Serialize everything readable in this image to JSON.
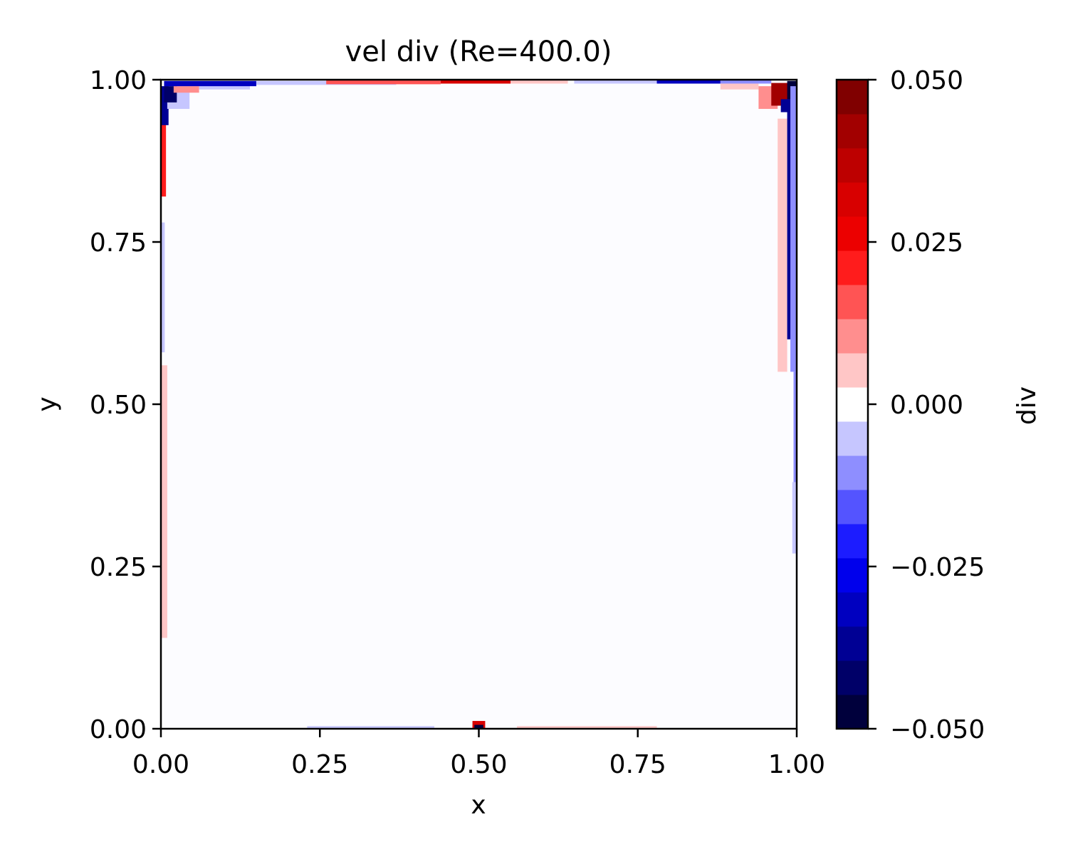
{
  "chart_data": {
    "type": "heatmap",
    "title": "vel div (Re=400.0)",
    "xlabel": "x",
    "ylabel": "y",
    "xlim": [
      0.0,
      1.0
    ],
    "ylim": [
      0.0,
      1.0
    ],
    "x_ticks": [
      "0.00",
      "0.25",
      "0.50",
      "0.75",
      "1.00"
    ],
    "y_ticks": [
      "0.00",
      "0.25",
      "0.50",
      "0.75",
      "1.00"
    ],
    "background_value": 0.0,
    "grid": false,
    "colorbar": {
      "label": "div",
      "vmin": -0.05,
      "vmax": 0.05,
      "ticks": [
        "−0.050",
        "−0.025",
        "0.000",
        "0.025",
        "0.050"
      ],
      "levels": 19,
      "colors_bottom_to_top": [
        "#00003c",
        "#000068",
        "#000094",
        "#0000c0",
        "#0000ec",
        "#1c1cff",
        "#5454ff",
        "#8e8eff",
        "#c6c6ff",
        "#ffffff",
        "#ffc6c6",
        "#ff8e8e",
        "#ff5454",
        "#ff1c1c",
        "#ec0000",
        "#d80000",
        "#bd0000",
        "#a20000",
        "#800000"
      ]
    },
    "features": [
      {
        "x0": 0.0,
        "x1": 0.01,
        "y0": 0.14,
        "y1": 0.56,
        "value": 0.004
      },
      {
        "x0": 0.0,
        "x1": 0.006,
        "y0": 0.58,
        "y1": 0.78,
        "value": -0.004
      },
      {
        "x0": 0.0,
        "x1": 0.008,
        "y0": 0.82,
        "y1": 0.96,
        "value": 0.022
      },
      {
        "x0": 0.0,
        "x1": 0.012,
        "y0": 0.93,
        "y1": 0.99,
        "value": -0.035
      },
      {
        "x0": 0.01,
        "x1": 0.045,
        "y0": 0.955,
        "y1": 0.985,
        "value": -0.007
      },
      {
        "x0": 0.005,
        "x1": 0.025,
        "y0": 0.965,
        "y1": 0.99,
        "value": -0.04
      },
      {
        "x0": 0.02,
        "x1": 0.06,
        "y0": 0.98,
        "y1": 0.99,
        "value": 0.012
      },
      {
        "x0": 0.06,
        "x1": 0.14,
        "y0": 0.985,
        "y1": 0.995,
        "value": -0.006
      },
      {
        "x0": 0.005,
        "x1": 0.15,
        "y0": 0.99,
        "y1": 0.998,
        "value": -0.03
      },
      {
        "x0": 0.15,
        "x1": 0.37,
        "y0": 0.992,
        "y1": 0.998,
        "value": -0.004
      },
      {
        "x0": 0.26,
        "x1": 0.44,
        "y0": 0.993,
        "y1": 1.0,
        "value": 0.018
      },
      {
        "x0": 0.44,
        "x1": 0.55,
        "y0": 0.994,
        "y1": 1.0,
        "value": 0.03
      },
      {
        "x0": 0.55,
        "x1": 0.64,
        "y0": 0.994,
        "y1": 1.0,
        "value": 0.006
      },
      {
        "x0": 0.65,
        "x1": 0.78,
        "y0": 0.994,
        "y1": 1.0,
        "value": -0.005
      },
      {
        "x0": 0.78,
        "x1": 0.88,
        "y0": 0.994,
        "y1": 1.0,
        "value": -0.03
      },
      {
        "x0": 0.88,
        "x1": 0.96,
        "y0": 0.994,
        "y1": 1.0,
        "value": -0.01
      },
      {
        "x0": 0.88,
        "x1": 0.94,
        "y0": 0.985,
        "y1": 0.994,
        "value": 0.006
      },
      {
        "x0": 0.94,
        "x1": 0.97,
        "y0": 0.955,
        "y1": 0.99,
        "value": 0.012
      },
      {
        "x0": 0.96,
        "x1": 0.99,
        "y0": 0.96,
        "y1": 0.995,
        "value": 0.04
      },
      {
        "x0": 0.975,
        "x1": 0.99,
        "y0": 0.95,
        "y1": 0.97,
        "value": -0.035
      },
      {
        "x0": 0.985,
        "x1": 1.0,
        "y0": 0.97,
        "y1": 0.998,
        "value": -0.045
      },
      {
        "x0": 0.97,
        "x1": 0.985,
        "y0": 0.55,
        "y1": 0.94,
        "value": 0.006
      },
      {
        "x0": 0.985,
        "x1": 0.995,
        "y0": 0.6,
        "y1": 0.97,
        "value": -0.035
      },
      {
        "x0": 0.99,
        "x1": 1.0,
        "y0": 0.55,
        "y1": 0.99,
        "value": -0.012
      },
      {
        "x0": 0.995,
        "x1": 1.0,
        "y0": 0.37,
        "y1": 0.55,
        "value": -0.008
      },
      {
        "x0": 0.993,
        "x1": 1.0,
        "y0": 0.27,
        "y1": 0.38,
        "value": -0.004
      },
      {
        "x0": 0.23,
        "x1": 0.43,
        "y0": 0.0,
        "y1": 0.004,
        "value": -0.005
      },
      {
        "x0": 0.56,
        "x1": 0.78,
        "y0": 0.0,
        "y1": 0.004,
        "value": 0.005
      },
      {
        "x0": 0.49,
        "x1": 0.51,
        "y0": 0.0,
        "y1": 0.012,
        "value": 0.03
      },
      {
        "x0": 0.493,
        "x1": 0.507,
        "y0": 0.0,
        "y1": 0.006,
        "value": -0.045
      }
    ]
  }
}
